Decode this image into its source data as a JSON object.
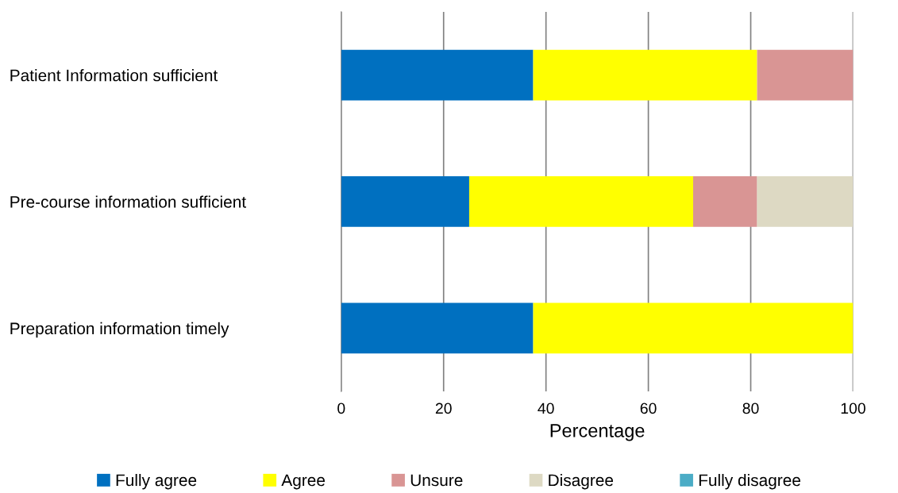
{
  "chart_data": {
    "type": "bar",
    "orientation": "horizontal",
    "stacked": true,
    "categories": [
      "Patient Information sufficient",
      "Pre-course information sufficient",
      "Preparation information timely"
    ],
    "series": [
      {
        "name": "Fully agree",
        "color": "#0070c0",
        "values": [
          37.5,
          25,
          37.5
        ]
      },
      {
        "name": "Agree",
        "color": "#ffff00",
        "values": [
          43.75,
          43.75,
          62.5
        ]
      },
      {
        "name": "Unsure",
        "color": "#d99594",
        "values": [
          18.75,
          12.5,
          0
        ]
      },
      {
        "name": "Disagree",
        "color": "#ddd9c3",
        "values": [
          0,
          18.75,
          0
        ]
      },
      {
        "name": "Fully disagree",
        "color": "#4bacc6",
        "values": [
          0,
          0,
          0
        ]
      }
    ],
    "xlabel": "Percentage",
    "xlim": [
      0,
      100
    ],
    "xticks": [
      0,
      20,
      40,
      60,
      80,
      100
    ],
    "grid": "x",
    "legend": "bottom"
  }
}
